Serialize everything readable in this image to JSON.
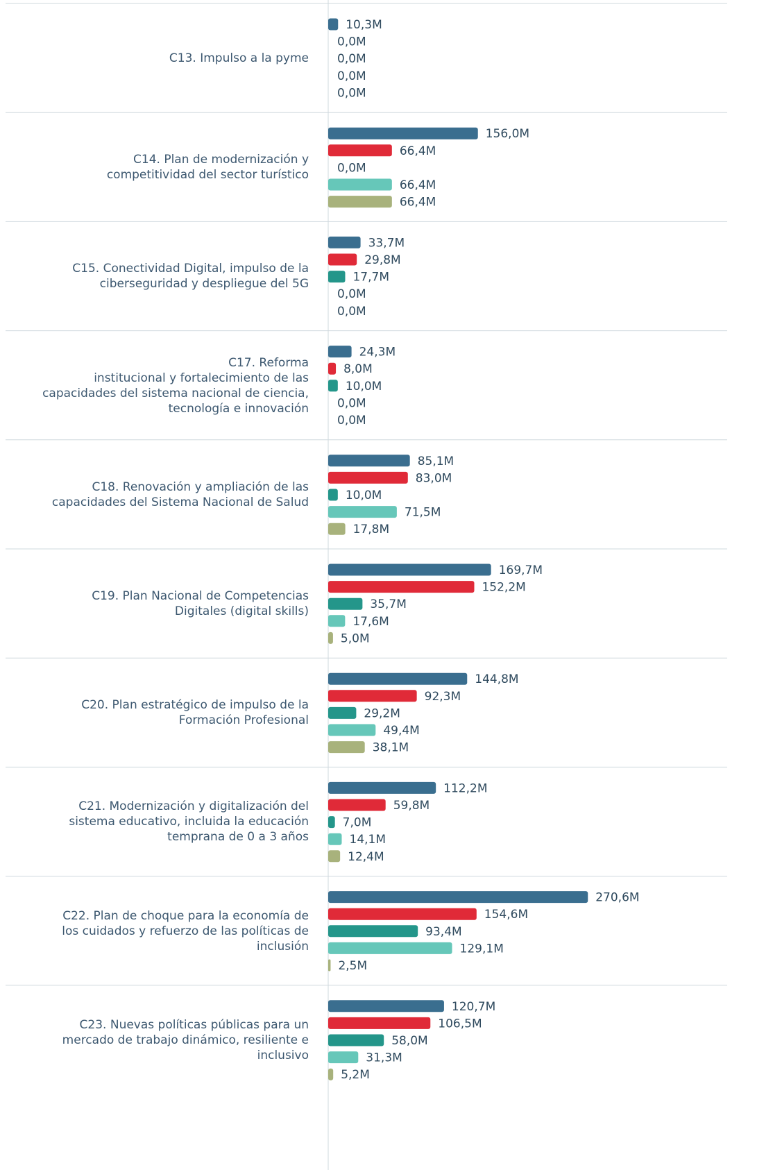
{
  "chart_data": {
    "type": "bar",
    "orientation": "horizontal",
    "categories": [
      "C13. Impulso a la pyme",
      "C14. Plan de modernización y\ncompetitividad del sector turístico",
      "C15. Conectividad Digital, impulso de la\nciberseguridad y despliegue del 5G",
      "C17. Reforma\ninstitucional y fortalecimiento de las\ncapacidades del sistema nacional de ciencia,\ntecnología e innovación",
      "C18. Renovación y ampliación de las\ncapacidades del Sistema Nacional de Salud",
      "C19. Plan Nacional de Competencias\nDigitales (digital skills)",
      "C20. Plan estratégico de impulso de la\nFormación Profesional",
      "C21. Modernización y digitalización del\nsistema educativo, incluida la educación\ntemprana de 0 a 3 años",
      "C22. Plan de choque para la economía de\nlos cuidados y refuerzo de las políticas de\ninclusión",
      "C23. Nuevas políticas públicas para un\nmercado de trabajo dinámico, resiliente e\ninclusivo"
    ],
    "series": [
      {
        "color": "#3a6e8f",
        "values": [
          10.3,
          156.0,
          33.7,
          24.3,
          85.1,
          169.7,
          144.8,
          112.2,
          270.6,
          120.7
        ],
        "value_labels": [
          "10,3M",
          "156,0M",
          "33,7M",
          "24,3M",
          "85,1M",
          "169,7M",
          "144,8M",
          "112,2M",
          "270,6M",
          "120,7M"
        ]
      },
      {
        "color": "#e02a38",
        "values": [
          0.0,
          66.4,
          29.8,
          8.0,
          83.0,
          152.2,
          92.3,
          59.8,
          154.6,
          106.5
        ],
        "value_labels": [
          "0,0M",
          "66,4M",
          "29,8M",
          "8,0M",
          "83,0M",
          "152,2M",
          "92,3M",
          "59,8M",
          "154,6M",
          "106,5M"
        ]
      },
      {
        "color": "#24968a",
        "values": [
          0.0,
          0.0,
          17.7,
          10.0,
          10.0,
          35.7,
          29.2,
          7.0,
          93.4,
          58.0
        ],
        "value_labels": [
          "0,0M",
          "0,0M",
          "17,7M",
          "10,0M",
          "10,0M",
          "35,7M",
          "29,2M",
          "7,0M",
          "93,4M",
          "58,0M"
        ]
      },
      {
        "color": "#66c7b9",
        "values": [
          0.0,
          66.4,
          0.0,
          0.0,
          71.5,
          17.6,
          49.4,
          14.1,
          129.1,
          31.3
        ],
        "value_labels": [
          "0,0M",
          "66,4M",
          "0,0M",
          "0,0M",
          "71,5M",
          "17,6M",
          "49,4M",
          "14,1M",
          "129,1M",
          "31,3M"
        ]
      },
      {
        "color": "#a8b27c",
        "values": [
          0.0,
          66.4,
          0.0,
          0.0,
          17.8,
          5.0,
          38.1,
          12.4,
          2.5,
          5.2
        ],
        "value_labels": [
          "0,0M",
          "66,4M",
          "0,0M",
          "0,0M",
          "17,8M",
          "5,0M",
          "38,1M",
          "12,4M",
          "2,5M",
          "5,2M"
        ]
      }
    ]
  }
}
